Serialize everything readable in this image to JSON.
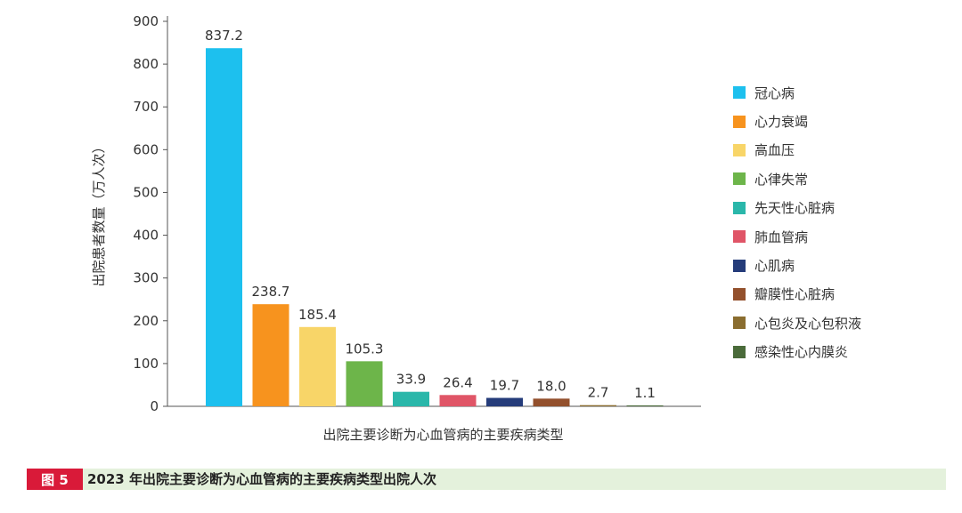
{
  "chart_data": {
    "type": "bar",
    "categories": [
      "冠心病",
      "心力衰竭",
      "高血压",
      "心律失常",
      "先天性心脏病",
      "肺血管病",
      "心肌病",
      "瓣膜性心脏病",
      "心包炎及心包积液",
      "感染性心内膜炎"
    ],
    "values": [
      837.2,
      238.7,
      185.4,
      105.3,
      33.9,
      26.4,
      19.7,
      18.0,
      2.7,
      1.1
    ],
    "value_labels": [
      "837.2",
      "238.7",
      "185.4",
      "105.3",
      "33.9",
      "26.4",
      "19.7",
      "18.0",
      "2.7",
      "1.1"
    ],
    "colors": [
      "#1dc0ee",
      "#f7931e",
      "#f8d568",
      "#6db54a",
      "#2ab7aa",
      "#e05567",
      "#253c7a",
      "#93502c",
      "#8a6d2f",
      "#4a6b3a"
    ],
    "xlabel": "出院主要诊断为心血管病的主要疾病类型",
    "ylabel": "出院患者数量（万人次）",
    "ylim": [
      0,
      900
    ],
    "yticks": [
      "0",
      "100",
      "200",
      "300",
      "400",
      "500",
      "600",
      "700",
      "800",
      "900"
    ],
    "grid": false,
    "legend_position": "right"
  },
  "caption": {
    "badge": "图 5",
    "text": "2023 年出院主要诊断为心血管病的主要疾病类型出院人次"
  }
}
